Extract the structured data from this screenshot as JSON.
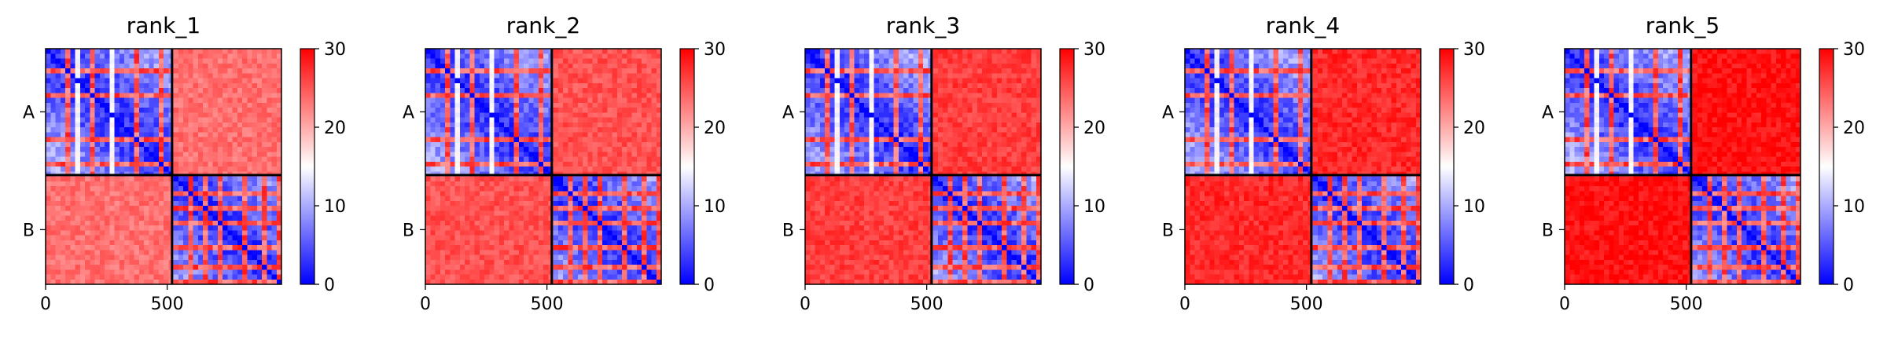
{
  "chart_data": {
    "type": "heatmap",
    "panels": [
      {
        "title": "rank_1",
        "offdiag_level": 0.78
      },
      {
        "title": "rank_2",
        "offdiag_level": 0.84
      },
      {
        "title": "rank_3",
        "offdiag_level": 0.88
      },
      {
        "title": "rank_4",
        "offdiag_level": 0.92
      },
      {
        "title": "rank_5",
        "offdiag_level": 0.97
      }
    ],
    "x_ticks": [
      {
        "value": 0,
        "label": "0"
      },
      {
        "value": 500,
        "label": "500"
      }
    ],
    "x_range": [
      0,
      970
    ],
    "boundary": 520,
    "y_labels": [
      "A",
      "B"
    ],
    "colorbar": {
      "ticks": [
        {
          "value": 0,
          "label": "0"
        },
        {
          "value": 10,
          "label": "10"
        },
        {
          "value": 20,
          "label": "20"
        },
        {
          "value": 30,
          "label": "30"
        }
      ],
      "range": [
        0,
        30
      ],
      "colormap": "bwr",
      "colors": [
        "#0000ff",
        "#ffffff",
        "#ff0000"
      ]
    }
  }
}
